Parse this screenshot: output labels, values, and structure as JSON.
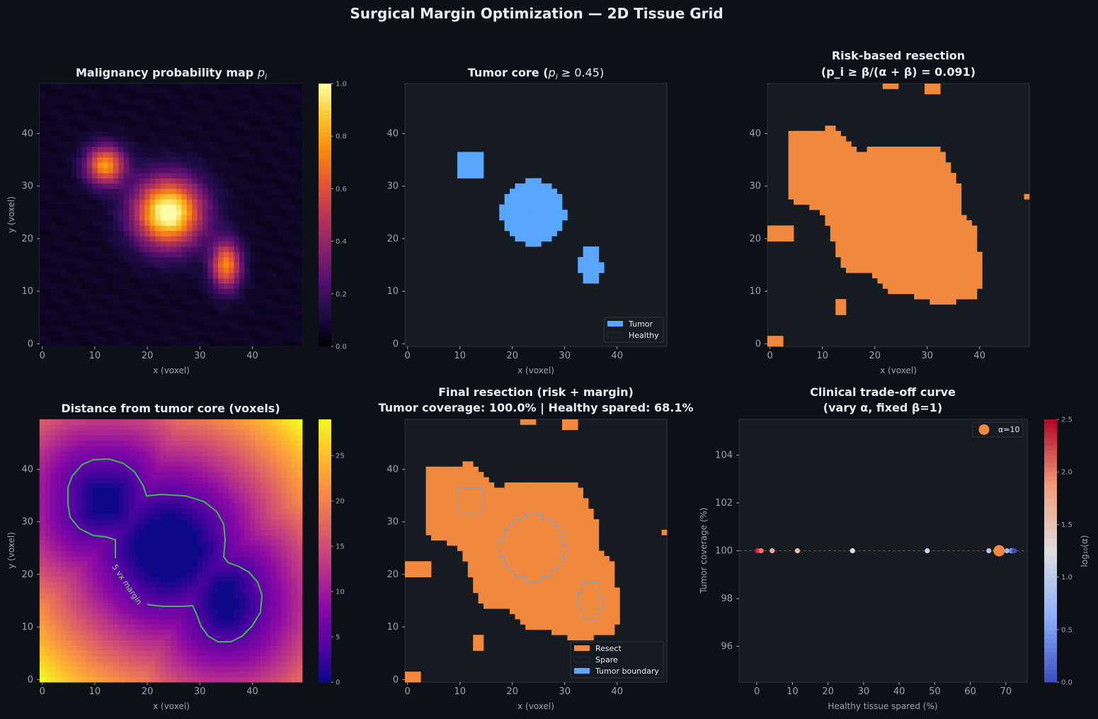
{
  "figure": {
    "title": "Surgical Margin Optimization — 2D Tissue Grid"
  },
  "colors": {
    "background": "#0d1117",
    "panel": "#161b22",
    "tumor": "#58a6ff",
    "resect": "#f0883e",
    "margin_contour": "#3fb950"
  },
  "chart_data": [
    {
      "type": "heatmap",
      "title": "Malignancy probability map  p_i",
      "title_prefix": "Malignancy probability map",
      "title_var": "p",
      "title_sub": "i",
      "xlabel": "x (voxel)",
      "ylabel": "y (voxel)",
      "xlim": [
        0,
        49
      ],
      "ylim": [
        0,
        49
      ],
      "grid_size": 50,
      "colormap": "inferno",
      "colorbar": {
        "range": [
          0,
          1
        ],
        "ticks": [
          "0.0",
          "0.2",
          "0.4",
          "0.6",
          "0.8",
          "1.0"
        ]
      },
      "blobs": [
        {
          "cx": 24,
          "cy": 25,
          "sx": 4.5,
          "sy": 4.5,
          "amp": 1.0
        },
        {
          "cx": 12,
          "cy": 34,
          "sx": 2.6,
          "sy": 2.6,
          "amp": 0.72
        },
        {
          "cx": 35,
          "cy": 15,
          "sx": 2.0,
          "sy": 3.2,
          "amp": 0.68
        }
      ],
      "background_level": 0.08
    },
    {
      "type": "heatmap",
      "title": "Tumor core  (p_i ≥ 0.45)",
      "title_prefix": "Tumor core  (",
      "title_expr": "p",
      "title_sub": "i",
      "title_suffix": " ≥ 0.45)",
      "xlabel": "x (voxel)",
      "xlim": [
        0,
        49
      ],
      "ylim": [
        0,
        49
      ],
      "threshold": 0.45,
      "legend": [
        {
          "label": "Tumor",
          "color": "#58a6ff"
        },
        {
          "label": "Healthy",
          "color": "#161b22"
        }
      ],
      "legend_position": "lower-right"
    },
    {
      "type": "heatmap",
      "title_line1": "Risk-based resection",
      "title_line2": "(p_i ≥ β/(α + β) = 0.091)",
      "xlabel": "x (voxel)",
      "xlim": [
        0,
        49
      ],
      "ylim": [
        0,
        49
      ],
      "threshold": 0.091
    },
    {
      "type": "heatmap",
      "title": "Distance from tumor core (voxels)",
      "xlabel": "x (voxel)",
      "ylabel": "y (voxel)",
      "xlim": [
        0,
        49
      ],
      "ylim": [
        0,
        49
      ],
      "colormap": "plasma",
      "colorbar": {
        "range": [
          0,
          29
        ],
        "ticks": [
          "0",
          "5",
          "10",
          "15",
          "20",
          "25"
        ],
        "tick_values": [
          0,
          5,
          10,
          15,
          20,
          25
        ]
      },
      "contour_label": "5 vx margin",
      "contour_level": 5
    },
    {
      "type": "heatmap",
      "title_line1": "Final resection (risk + margin)",
      "title_line2": "Tumor coverage: 100.0%  |  Healthy spared: 68.1%",
      "xlabel": "x (voxel)",
      "xlim": [
        0,
        49
      ],
      "ylim": [
        0,
        49
      ],
      "tumor_coverage_pct": 100.0,
      "healthy_spared_pct": 68.1,
      "legend": [
        {
          "label": "Resect",
          "color": "#f0883e"
        },
        {
          "label": "Spare",
          "color": "#161b22"
        },
        {
          "label": "Tumor boundary",
          "color": "#58a6ff"
        }
      ],
      "legend_position": "lower-right"
    },
    {
      "type": "scatter",
      "title_line1": "Clinical trade-off curve",
      "title_line2": "(vary α, fixed β=1)",
      "xlabel": "Healthy tissue spared (%)",
      "ylabel": "Tumor coverage (%)",
      "xlim": [
        -5,
        76
      ],
      "ylim": [
        94.5,
        105.5
      ],
      "xticks": [
        0,
        10,
        20,
        30,
        40,
        50,
        60,
        70
      ],
      "yticks": [
        96,
        98,
        100,
        102,
        104
      ],
      "points": [
        {
          "x": 0,
          "y": 100,
          "log_alpha": 2.5
        },
        {
          "x": 0.4,
          "y": 100,
          "log_alpha": 2.3
        },
        {
          "x": 1.2,
          "y": 100,
          "log_alpha": 2.0
        },
        {
          "x": 4.3,
          "y": 100,
          "log_alpha": 1.75
        },
        {
          "x": 11.4,
          "y": 100,
          "log_alpha": 1.5
        },
        {
          "x": 26.9,
          "y": 100,
          "log_alpha": 1.25
        },
        {
          "x": 47.9,
          "y": 100,
          "log_alpha": 1.1
        },
        {
          "x": 65.2,
          "y": 100,
          "log_alpha": 0.9
        },
        {
          "x": 70.3,
          "y": 100,
          "log_alpha": 0.7
        },
        {
          "x": 71.5,
          "y": 100,
          "log_alpha": 0.5
        },
        {
          "x": 72.0,
          "y": 100,
          "log_alpha": 0.25
        },
        {
          "x": 72.4,
          "y": 100,
          "log_alpha": 0.0
        }
      ],
      "highlight": {
        "x": 68.1,
        "y": 100,
        "label": "α=10"
      },
      "reference_line_y": 100,
      "legend_position": "top-right",
      "colormap": "coolwarm",
      "colorbar": {
        "label": "log₁₀(α)",
        "range": [
          0,
          2.5
        ],
        "ticks": [
          "0.0",
          "0.5",
          "1.0",
          "1.5",
          "2.0",
          "2.5"
        ]
      }
    }
  ]
}
